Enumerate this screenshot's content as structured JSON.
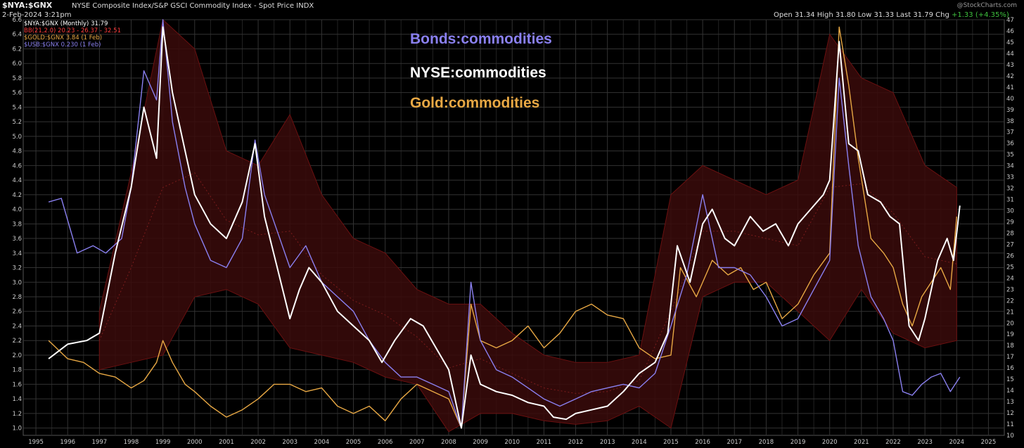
{
  "header": {
    "ticker": "$NYA:$GNX",
    "description": "NYSE Composite Index/S&P GSCI Commodity Index - Spot Price  INDX",
    "date": "2-Feb-2024 3:21pm",
    "watermark": "@StockCharts.com",
    "ohlc": "Open 31.34  High 31.80  Low 31.33  Last 31.79  Chg",
    "chg": "+1.33 (+4.35%)"
  },
  "legend": [
    {
      "text": "$NYA:$GNX (Monthly) 31.79",
      "color": "#ffffff"
    },
    {
      "text": "BB(21,2.0) 20.23 - 26.37 - 32.51",
      "color": "#ff3b3b"
    },
    {
      "text": "$GOLD:$GNX 3.84 (1 Feb)",
      "color": "#e8a844"
    },
    {
      "text": "$USB:$GNX 0.230 (1 Feb)",
      "color": "#8a80f0"
    }
  ],
  "annotations": [
    {
      "text": "Bonds:commodities",
      "color": "#8a80f0"
    },
    {
      "text": "NYSE:commodities",
      "color": "#ffffff"
    },
    {
      "text": "Gold:commodities",
      "color": "#e8a844"
    }
  ],
  "chart_data": {
    "type": "line",
    "title": "$NYA:$GNX",
    "x_ticks": [
      1995,
      1996,
      1997,
      1998,
      1999,
      2000,
      2001,
      2002,
      2003,
      2004,
      2005,
      2006,
      2007,
      2008,
      2009,
      2010,
      2011,
      2012,
      2013,
      2014,
      2015,
      2016,
      2017,
      2018,
      2019,
      2020,
      2021,
      2022,
      2023,
      2024,
      2025
    ],
    "xlim": [
      1994.6,
      2025.5
    ],
    "left_axis": {
      "ylim": [
        0.9,
        6.6
      ],
      "ticks": [
        "1.0",
        "1.2",
        "1.4",
        "1.6",
        "1.8",
        "2.0",
        "2.2",
        "2.4",
        "2.6",
        "2.8",
        "3.0",
        "3.2",
        "3.4",
        "3.6",
        "3.8",
        "4.0",
        "4.2",
        "4.4",
        "4.6",
        "4.8",
        "5.0",
        "5.2",
        "5.4",
        "5.6",
        "5.8",
        "6.0",
        "6.2",
        "6.4",
        "6.6"
      ]
    },
    "right_axis": {
      "ylim": [
        10,
        47
      ],
      "ticks": [
        "10",
        "11",
        "12",
        "13",
        "14",
        "15",
        "16",
        "17",
        "18",
        "19",
        "20",
        "21",
        "22",
        "23",
        "24",
        "25",
        "26",
        "27",
        "28",
        "29",
        "30",
        "31",
        "32",
        "33",
        "34",
        "35",
        "36",
        "37",
        "38",
        "39",
        "40",
        "41",
        "42",
        "43",
        "44",
        "45",
        "46",
        "47"
      ]
    },
    "grid": true,
    "series": [
      {
        "name": "$NYA:$GNX (Monthly)",
        "axis": "left",
        "color": "#ffffff",
        "x": [
          1995.4,
          1996.0,
          1996.6,
          1997.0,
          1997.5,
          1998.0,
          1998.4,
          1998.8,
          1999.0,
          1999.3,
          1999.7,
          2000.0,
          2000.5,
          2001.0,
          2001.5,
          2001.9,
          2002.2,
          2002.6,
          2003.0,
          2003.3,
          2003.6,
          2004.0,
          2004.5,
          2005.0,
          2005.5,
          2005.9,
          2006.3,
          2006.8,
          2007.2,
          2007.6,
          2008.0,
          2008.4,
          2008.7,
          2009.0,
          2009.5,
          2010.0,
          2010.5,
          2011.0,
          2011.3,
          2011.7,
          2012.0,
          2012.5,
          2013.0,
          2013.5,
          2014.0,
          2014.5,
          2014.9,
          2015.2,
          2015.6,
          2016.0,
          2016.3,
          2016.7,
          2017.0,
          2017.5,
          2017.9,
          2018.3,
          2018.7,
          2019.0,
          2019.4,
          2019.8,
          2020.0,
          2020.3,
          2020.6,
          2020.9,
          2021.2,
          2021.6,
          2021.9,
          2022.2,
          2022.5,
          2022.8,
          2023.0,
          2023.4,
          2023.7,
          2023.9,
          2024.1
        ],
        "y": [
          1.95,
          2.15,
          2.2,
          2.3,
          3.4,
          4.3,
          5.4,
          4.7,
          6.5,
          5.6,
          4.8,
          4.2,
          3.8,
          3.6,
          4.1,
          4.9,
          3.9,
          3.2,
          2.5,
          2.9,
          3.2,
          3.0,
          2.6,
          2.4,
          2.2,
          1.9,
          2.2,
          2.5,
          2.4,
          2.1,
          1.8,
          1.0,
          2.0,
          1.6,
          1.5,
          1.45,
          1.35,
          1.3,
          1.15,
          1.12,
          1.2,
          1.25,
          1.3,
          1.5,
          1.75,
          1.9,
          2.3,
          3.5,
          3.0,
          3.8,
          4.0,
          3.6,
          3.5,
          3.9,
          3.7,
          3.8,
          3.5,
          3.8,
          4.0,
          4.2,
          4.4,
          6.3,
          4.9,
          4.8,
          4.2,
          4.1,
          3.9,
          3.8,
          2.4,
          2.2,
          2.5,
          3.3,
          3.6,
          3.3,
          4.05
        ]
      },
      {
        "name": "$GOLD:$GNX",
        "axis": "left",
        "color": "#e8a844",
        "x": [
          1995.4,
          1996.0,
          1996.5,
          1997.0,
          1997.5,
          1998.0,
          1998.4,
          1998.8,
          1999.0,
          1999.3,
          1999.7,
          2000.0,
          2000.5,
          2001.0,
          2001.5,
          2002.0,
          2002.5,
          2003.0,
          2003.5,
          2004.0,
          2004.5,
          2005.0,
          2005.5,
          2006.0,
          2006.5,
          2007.0,
          2007.5,
          2008.0,
          2008.4,
          2008.7,
          2009.0,
          2009.5,
          2010.0,
          2010.5,
          2011.0,
          2011.5,
          2012.0,
          2012.5,
          2013.0,
          2013.5,
          2014.0,
          2014.5,
          2015.0,
          2015.3,
          2015.8,
          2016.3,
          2016.8,
          2017.2,
          2017.6,
          2018.0,
          2018.5,
          2019.0,
          2019.5,
          2020.0,
          2020.3,
          2020.6,
          2020.9,
          2021.3,
          2021.7,
          2022.0,
          2022.3,
          2022.6,
          2022.9,
          2023.2,
          2023.5,
          2023.8,
          2024.0
        ],
        "y": [
          2.2,
          1.95,
          1.9,
          1.75,
          1.7,
          1.55,
          1.65,
          1.9,
          2.2,
          1.9,
          1.6,
          1.5,
          1.3,
          1.15,
          1.25,
          1.4,
          1.6,
          1.6,
          1.5,
          1.55,
          1.3,
          1.2,
          1.3,
          1.1,
          1.4,
          1.6,
          1.5,
          1.4,
          1.0,
          2.7,
          2.2,
          2.1,
          2.2,
          2.4,
          2.1,
          2.3,
          2.6,
          2.7,
          2.55,
          2.5,
          2.1,
          1.95,
          2.0,
          3.2,
          2.8,
          3.3,
          3.1,
          3.2,
          2.9,
          3.0,
          2.5,
          2.7,
          3.1,
          3.4,
          6.5,
          5.7,
          4.7,
          3.6,
          3.4,
          3.2,
          2.7,
          2.4,
          2.8,
          3.0,
          3.2,
          2.9,
          3.9
        ]
      },
      {
        "name": "$USB:$GNX",
        "axis": "left",
        "color": "#8a80f0",
        "x": [
          1995.4,
          1995.8,
          1996.3,
          1996.8,
          1997.2,
          1997.7,
          1998.0,
          1998.4,
          1998.8,
          1999.0,
          1999.3,
          1999.7,
          2000.0,
          2000.5,
          2001.0,
          2001.5,
          2001.9,
          2002.2,
          2002.6,
          2003.0,
          2003.5,
          2004.0,
          2004.5,
          2005.0,
          2005.5,
          2006.0,
          2006.5,
          2007.0,
          2007.5,
          2008.0,
          2008.4,
          2008.7,
          2009.0,
          2009.5,
          2010.0,
          2010.5,
          2011.0,
          2011.5,
          2012.0,
          2012.5,
          2013.0,
          2013.5,
          2014.0,
          2014.5,
          2015.0,
          2015.5,
          2016.0,
          2016.5,
          2017.0,
          2017.5,
          2018.0,
          2018.5,
          2019.0,
          2019.5,
          2020.0,
          2020.3,
          2020.6,
          2020.9,
          2021.3,
          2021.7,
          2022.0,
          2022.3,
          2022.6,
          2022.9,
          2023.2,
          2023.5,
          2023.8,
          2024.1
        ],
        "y": [
          4.1,
          4.15,
          3.4,
          3.5,
          3.4,
          3.6,
          4.3,
          5.9,
          5.5,
          6.6,
          5.2,
          4.3,
          3.8,
          3.3,
          3.2,
          3.6,
          4.95,
          4.2,
          3.7,
          3.2,
          3.5,
          3.0,
          2.8,
          2.6,
          2.2,
          1.9,
          1.7,
          1.7,
          1.6,
          1.5,
          1.0,
          3.0,
          2.2,
          1.8,
          1.7,
          1.55,
          1.4,
          1.3,
          1.4,
          1.5,
          1.55,
          1.6,
          1.55,
          1.75,
          2.4,
          3.1,
          4.2,
          3.2,
          3.2,
          3.1,
          2.8,
          2.4,
          2.5,
          2.9,
          3.3,
          5.8,
          4.6,
          3.5,
          2.8,
          2.5,
          2.2,
          1.5,
          1.45,
          1.6,
          1.7,
          1.75,
          1.5,
          1.7
        ]
      }
    ],
    "bollinger_band": {
      "label": "BB(21,2.0)",
      "x": [
        1997.0,
        1998.0,
        1999.0,
        2000.0,
        2001.0,
        2002.0,
        2003.0,
        2004.0,
        2005.0,
        2006.0,
        2007.0,
        2008.0,
        2009.0,
        2010.0,
        2011.0,
        2012.0,
        2013.0,
        2014.0,
        2015.0,
        2016.0,
        2017.0,
        2018.0,
        2019.0,
        2020.0,
        2021.0,
        2022.0,
        2023.0,
        2024.0
      ],
      "upper": [
        2.6,
        4.5,
        6.6,
        6.2,
        4.8,
        4.6,
        5.3,
        4.2,
        3.6,
        3.4,
        2.9,
        2.7,
        2.7,
        2.3,
        2.0,
        1.9,
        1.9,
        2.0,
        4.2,
        4.6,
        4.4,
        4.2,
        4.4,
        6.4,
        5.8,
        5.6,
        4.6,
        4.3
      ],
      "lower": [
        1.8,
        1.9,
        2.0,
        2.8,
        2.9,
        2.7,
        2.1,
        2.0,
        1.9,
        1.7,
        1.6,
        0.95,
        1.2,
        1.2,
        1.1,
        1.05,
        1.1,
        1.3,
        1.0,
        2.8,
        3.0,
        3.0,
        2.6,
        2.2,
        2.9,
        2.3,
        2.1,
        2.2
      ],
      "fill": "#3a0a0a",
      "stroke": "#6a1010"
    }
  }
}
